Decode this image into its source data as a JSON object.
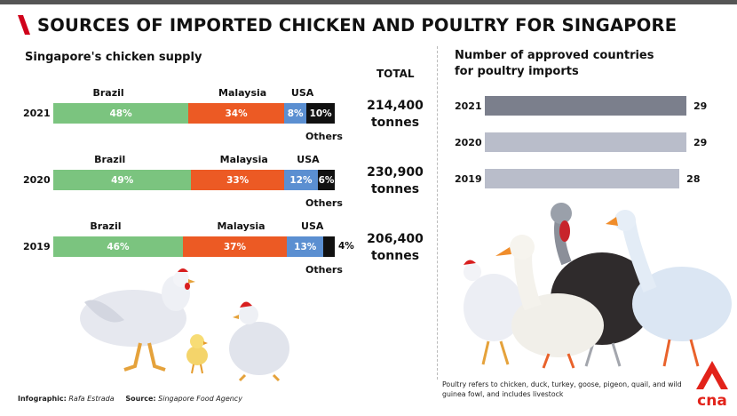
{
  "header": {
    "title": "SOURCES OF IMPORTED CHICKEN AND POULTRY FOR SINGAPORE",
    "accent_color": "#d0021b"
  },
  "left": {
    "subtitle": "Singapore's chicken supply",
    "total_header": "TOTAL",
    "others_label": "Others"
  },
  "right": {
    "subtitle_line1": "Number of approved countries",
    "subtitle_line2": "for poultry imports"
  },
  "chart_data": [
    {
      "type": "bar",
      "orientation": "horizontal-stacked-100",
      "title": "Singapore's chicken supply",
      "categories": [
        "2021",
        "2020",
        "2019"
      ],
      "series": [
        {
          "name": "Brazil",
          "values": [
            48,
            49,
            46
          ],
          "color": "#7bc47f"
        },
        {
          "name": "Malaysia",
          "values": [
            34,
            33,
            37
          ],
          "color": "#ec5a24"
        },
        {
          "name": "USA",
          "values": [
            8,
            12,
            13
          ],
          "color": "#5b8fd1"
        },
        {
          "name": "Others",
          "values": [
            10,
            6,
            4
          ],
          "color": "#111111"
        }
      ],
      "value_labels": [
        [
          "48%",
          "34%",
          "8%",
          "10%"
        ],
        [
          "49%",
          "33%",
          "12%",
          "6%"
        ],
        [
          "46%",
          "37%",
          "13%",
          "4%"
        ]
      ],
      "totals": [
        {
          "year": "2021",
          "line1": "214,400",
          "line2": "tonnes"
        },
        {
          "year": "2020",
          "line1": "230,900",
          "line2": "tonnes"
        },
        {
          "year": "2019",
          "line1": "206,400",
          "line2": "tonnes"
        }
      ]
    },
    {
      "type": "bar",
      "orientation": "horizontal",
      "title": "Number of approved countries for poultry imports",
      "categories": [
        "2021",
        "2020",
        "2019"
      ],
      "values": [
        29,
        29,
        28
      ],
      "colors": [
        "#7b7f8c",
        "#b9bdca",
        "#b9bdca"
      ]
    }
  ],
  "footer": {
    "infographic_label": "Infographic:",
    "infographic_value": "Rafa Estrada",
    "source_label": "Source:",
    "source_value": "Singapore Food Agency"
  },
  "note": {
    "line1": "Poultry refers to chicken, duck, turkey, goose, pigeon, quail, and wild",
    "line2": "guinea fowl, and includes livestock"
  },
  "logo": {
    "text": "cna",
    "color": "#e2231a"
  }
}
